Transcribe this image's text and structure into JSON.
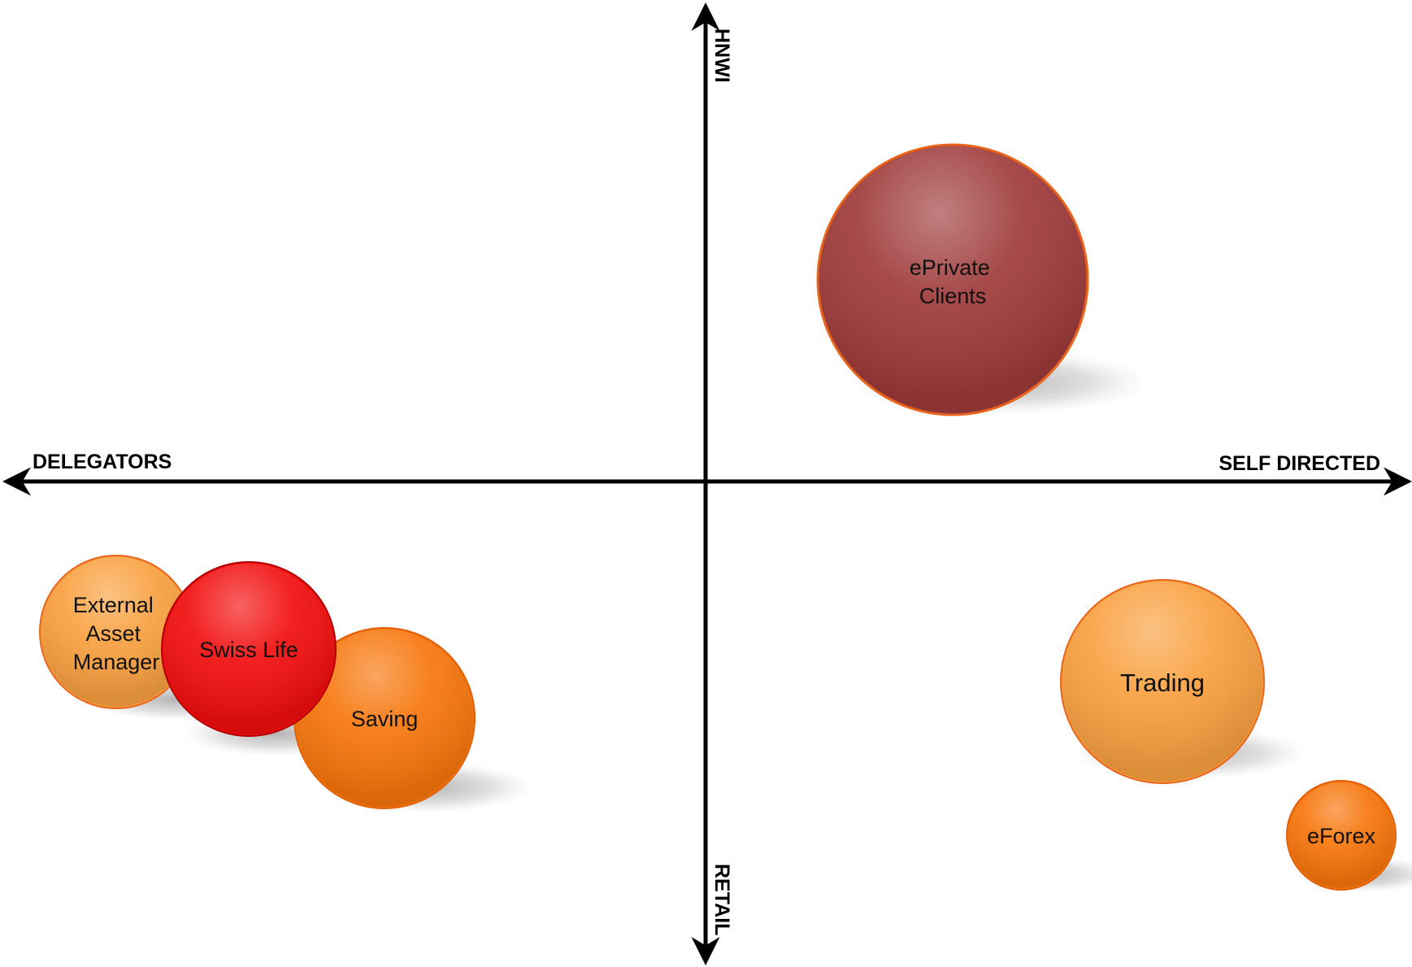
{
  "axes": {
    "top_label": "HNWI",
    "bottom_label": "RETAIL",
    "left_label": "DELEGATORS",
    "right_label": "SELF DIRECTED"
  },
  "bubbles": [
    {
      "id": "eprivate",
      "lines": [
        "ePrivate",
        "Clients"
      ],
      "color": "#9E3A3A"
    },
    {
      "id": "external",
      "lines": [
        "External",
        "Asset",
        "Manager"
      ],
      "color": "#F9A03F"
    },
    {
      "id": "saving",
      "lines": [
        "Saving"
      ],
      "color": "#F7750B"
    },
    {
      "id": "swisslife",
      "lines": [
        "Swiss Life"
      ],
      "color": "#F20D0D"
    },
    {
      "id": "trading",
      "lines": [
        "Trading"
      ],
      "color": "#F9A03F"
    },
    {
      "id": "eforex",
      "lines": [
        "eForex"
      ],
      "color": "#F7750B"
    }
  ]
}
